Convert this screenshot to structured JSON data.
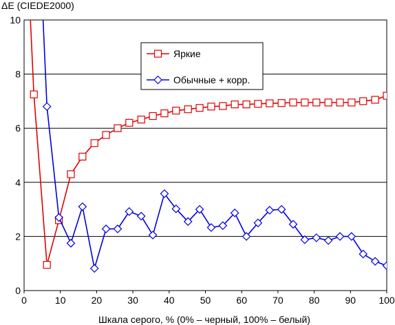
{
  "chart_data": {
    "type": "line",
    "title": "",
    "ylabel": "ΔE (CIEDE2000)",
    "xlabel": "Шкала серого, % (0% – черный, 100% – белый)",
    "xlim": [
      0,
      100
    ],
    "ylim": [
      0,
      10
    ],
    "xticks": [
      0,
      10,
      20,
      30,
      40,
      50,
      60,
      70,
      80,
      90,
      100
    ],
    "yticks": [
      0,
      2,
      4,
      6,
      8,
      10
    ],
    "grid": "horizontal",
    "legend_position": "top-center",
    "series": [
      {
        "name": "Яркие",
        "color": "#e00000",
        "marker": "square",
        "x": [
          2.7,
          6.3,
          9.6,
          12.9,
          16.1,
          19.4,
          22.6,
          25.8,
          29.0,
          32.3,
          35.5,
          38.7,
          41.9,
          45.2,
          48.4,
          51.6,
          54.8,
          58.1,
          61.3,
          64.5,
          67.7,
          71.0,
          74.2,
          77.4,
          80.6,
          83.9,
          87.1,
          90.3,
          93.5,
          96.8,
          100.0
        ],
        "y": [
          7.25,
          0.95,
          2.6,
          4.3,
          4.95,
          5.45,
          5.75,
          6.0,
          6.2,
          6.32,
          6.45,
          6.55,
          6.65,
          6.7,
          6.75,
          6.8,
          6.82,
          6.88,
          6.88,
          6.9,
          6.92,
          6.93,
          6.95,
          6.95,
          6.95,
          6.95,
          6.95,
          6.95,
          7.0,
          7.05,
          7.2
        ]
      },
      {
        "name": "Обычные + корр.",
        "color": "#0000e0",
        "marker": "diamond",
        "x": [
          6.3,
          9.6,
          12.9,
          16.1,
          19.4,
          22.6,
          25.8,
          29.0,
          32.3,
          35.5,
          38.7,
          41.9,
          45.2,
          48.4,
          51.6,
          54.8,
          58.1,
          61.3,
          64.5,
          67.7,
          71.0,
          74.2,
          77.4,
          80.6,
          83.9,
          87.1,
          90.3,
          93.5,
          96.8,
          100.0
        ],
        "y": [
          6.8,
          2.7,
          1.75,
          3.1,
          0.82,
          2.28,
          2.28,
          2.92,
          2.75,
          2.05,
          3.58,
          3.02,
          2.55,
          3.0,
          2.33,
          2.4,
          2.87,
          2.0,
          2.5,
          2.97,
          3.0,
          2.45,
          1.88,
          1.95,
          1.85,
          2.0,
          2.0,
          1.35,
          1.08,
          0.92
        ]
      }
    ],
    "offscale_start": [
      {
        "series": 0,
        "x": 1.4,
        "y": 10.0
      },
      {
        "series": 1,
        "x": 4.9,
        "y": 10.0
      }
    ]
  }
}
